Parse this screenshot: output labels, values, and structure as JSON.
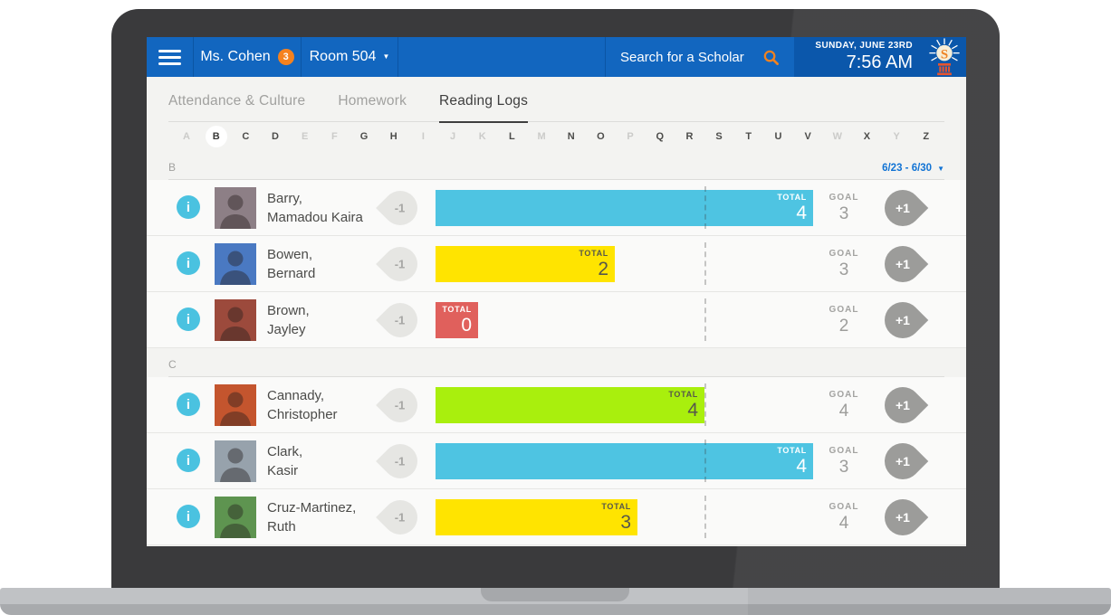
{
  "header": {
    "teacher": "Ms. Cohen",
    "badge": "3",
    "room": "Room 504",
    "search_placeholder": "Search for a Scholar",
    "date": "SUNDAY, JUNE 23RD",
    "time": "7:56 AM"
  },
  "tabs": [
    {
      "label": "Attendance & Culture",
      "active": false
    },
    {
      "label": "Homework",
      "active": false
    },
    {
      "label": "Reading Logs",
      "active": true
    }
  ],
  "alphabet": [
    {
      "letter": "A",
      "state": "off"
    },
    {
      "letter": "B",
      "state": "selected"
    },
    {
      "letter": "C",
      "state": "on"
    },
    {
      "letter": "D",
      "state": "on"
    },
    {
      "letter": "E",
      "state": "off"
    },
    {
      "letter": "F",
      "state": "off"
    },
    {
      "letter": "G",
      "state": "on"
    },
    {
      "letter": "H",
      "state": "on"
    },
    {
      "letter": "I",
      "state": "off"
    },
    {
      "letter": "J",
      "state": "off"
    },
    {
      "letter": "K",
      "state": "off"
    },
    {
      "letter": "L",
      "state": "on"
    },
    {
      "letter": "M",
      "state": "off"
    },
    {
      "letter": "N",
      "state": "on"
    },
    {
      "letter": "O",
      "state": "on"
    },
    {
      "letter": "P",
      "state": "off"
    },
    {
      "letter": "Q",
      "state": "on"
    },
    {
      "letter": "R",
      "state": "on"
    },
    {
      "letter": "S",
      "state": "on"
    },
    {
      "letter": "T",
      "state": "on"
    },
    {
      "letter": "U",
      "state": "on"
    },
    {
      "letter": "V",
      "state": "on"
    },
    {
      "letter": "W",
      "state": "off"
    },
    {
      "letter": "X",
      "state": "on"
    },
    {
      "letter": "Y",
      "state": "off"
    },
    {
      "letter": "Z",
      "state": "on"
    }
  ],
  "date_range": {
    "label": "6/23 - 6/30"
  },
  "labels": {
    "total": "TOTAL",
    "goal": "GOAL",
    "minus": "-1",
    "plus": "+1"
  },
  "colors": {
    "header_blue": "#1266bf",
    "header_blue_dark": "#0b57ab",
    "accent_orange": "#f5821f",
    "link_blue": "#1173d4",
    "cyan": "#4ec4e2",
    "yellow": "#ffe400",
    "red": "#e0605c",
    "green": "#a9ef0d"
  },
  "sections": [
    {
      "letter": "B",
      "show_date_range": true,
      "students": [
        {
          "name_line1": "Barry,",
          "name_line2": "Mamadou Kaira",
          "total": 4,
          "goal": 3,
          "color": "cyan",
          "avatar_color": "#8d7f86"
        },
        {
          "name_line1": "Bowen,",
          "name_line2": "Bernard",
          "total": 2,
          "goal": 3,
          "color": "yellow",
          "avatar_color": "#4a79c2"
        },
        {
          "name_line1": "Brown,",
          "name_line2": "Jayley",
          "total": 0,
          "goal": 2,
          "color": "red",
          "avatar_color": "#9c4a3c"
        }
      ]
    },
    {
      "letter": "C",
      "show_date_range": false,
      "students": [
        {
          "name_line1": "Cannady,",
          "name_line2": "Christopher",
          "total": 4,
          "goal": 4,
          "color": "green",
          "avatar_color": "#c4552e"
        },
        {
          "name_line1": "Clark,",
          "name_line2": "Kasir",
          "total": 4,
          "goal": 3,
          "color": "cyan",
          "avatar_color": "#97a2ac"
        },
        {
          "name_line1": "Cruz-Martinez,",
          "name_line2": "Ruth",
          "total": 3,
          "goal": 4,
          "color": "yellow",
          "avatar_color": "#5e9450"
        }
      ]
    }
  ]
}
